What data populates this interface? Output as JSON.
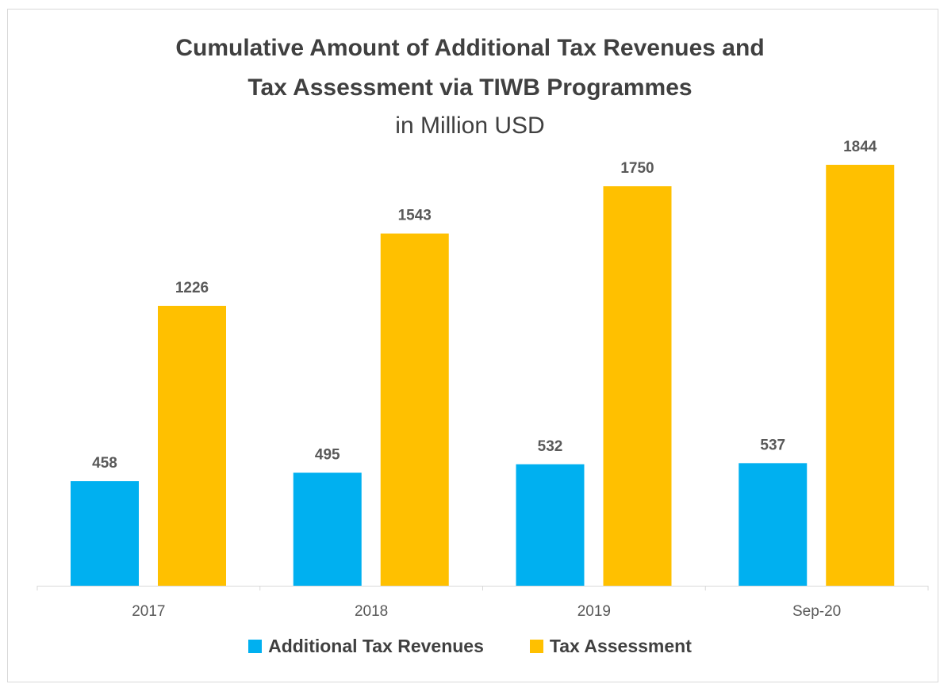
{
  "chart_data": {
    "type": "bar",
    "title_line1": "Cumulative Amount of Additional Tax Revenues and",
    "title_line2": "Tax Assessment via TIWB Programmes",
    "subtitle": "in Million USD",
    "categories": [
      "2017",
      "2018",
      "2019",
      "Sep-20"
    ],
    "series": [
      {
        "name": "Additional Tax Revenues",
        "color": "#00B0F0",
        "values": [
          458,
          495,
          532,
          537
        ]
      },
      {
        "name": "Tax Assessment",
        "color": "#FFC000",
        "values": [
          1226,
          1543,
          1750,
          1844
        ]
      }
    ],
    "xlabel": "",
    "ylabel": "",
    "ylim": [
      0,
      2000
    ],
    "grid": false,
    "legend_position": "bottom",
    "data_labels": true
  }
}
